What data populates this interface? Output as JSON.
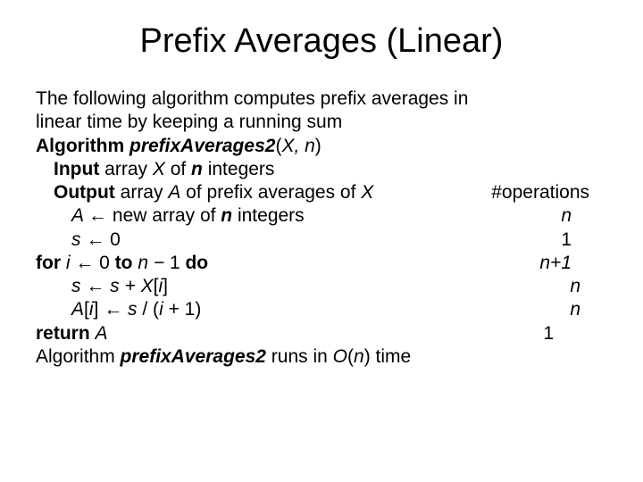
{
  "title": "Prefix Averages (Linear)",
  "intro1": "The following algorithm computes prefix averages in",
  "intro2": " linear time by keeping a running sum",
  "algo_label": "Algorithm ",
  "algo_name": "prefixAverages2",
  "algo_params_open": "(",
  "algo_param1": "X, n",
  "algo_params_close": ")",
  "input_label": "Input ",
  "input_text1": "array ",
  "input_var1": "X",
  "input_text2": " of ",
  "input_var2": "n",
  "input_text3": " integers",
  "output_label": "Output ",
  "output_text1": "array ",
  "output_var1": "A",
  "output_text2": " of prefix averages of ",
  "output_var2": "X",
  "ops_header": "#operations",
  "line1_left": "A ← ",
  "line1_text": "new array of ",
  "line1_var": "n",
  "line1_text2": " integers",
  "line1_ops": "n",
  "line2_left": "s ← ",
  "line2_val": "0",
  "line2_ops": "1",
  "line3_for": "for ",
  "line3_i": "i ← ",
  "line3_zero": "0 ",
  "line3_to": "to ",
  "line3_n": "n − ",
  "line3_one": "1 ",
  "line3_do": "do",
  "line3_ops": "n+1",
  "line4_left": "s ← s + X",
  "line4_br1": "[",
  "line4_i": "i",
  "line4_br2": "]",
  "line4_ops": "n",
  "line5_a": "A",
  "line5_br1": "[",
  "line5_i": "i",
  "line5_br2": "] ",
  "line5_arrow": "← ",
  "line5_s": "s ",
  "line5_slash": "/ (",
  "line5_i2": "i ",
  "line5_plus": "+ 1)",
  "line5_ops": "n",
  "line6_return": "return ",
  "line6_a": "A",
  "line6_ops": "1",
  "closing1": "Algorithm ",
  "closing_name": "prefixAverages2",
  "closing2": " runs in ",
  "closing_o": "O",
  "closing3": "(",
  "closing_n": "n",
  "closing4": ") time"
}
